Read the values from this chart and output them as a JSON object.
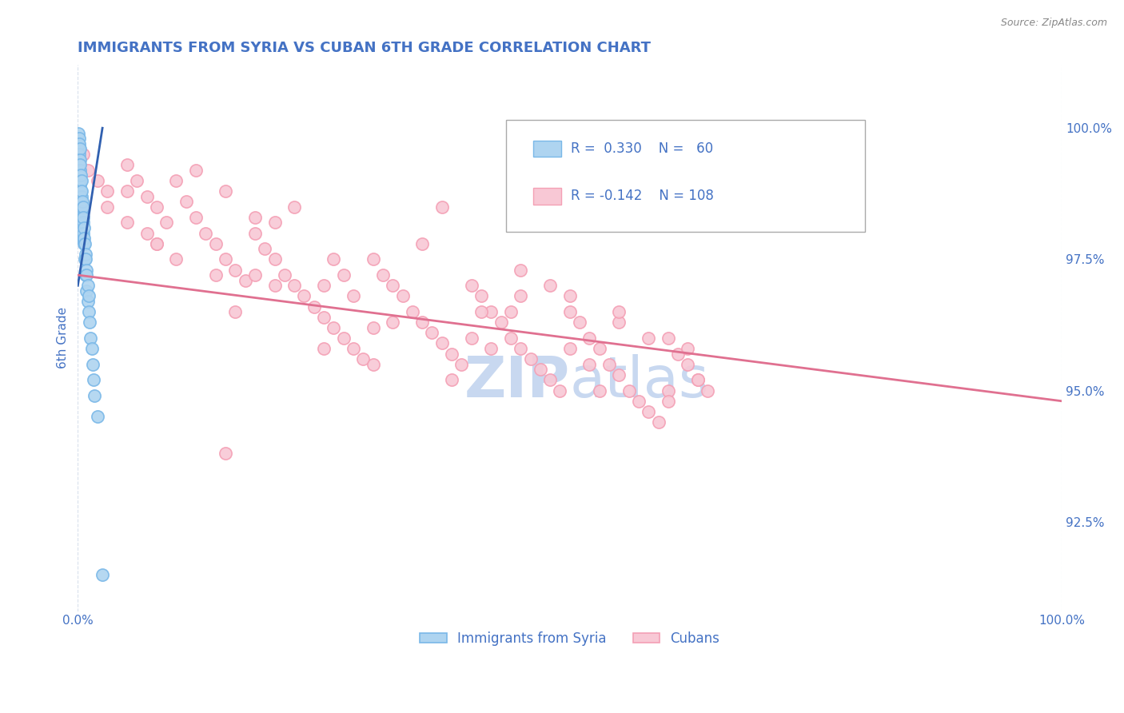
{
  "title": "IMMIGRANTS FROM SYRIA VS CUBAN 6TH GRADE CORRELATION CHART",
  "source_text": "Source: ZipAtlas.com",
  "ylabel": "6th Grade",
  "right_yticks": [
    92.5,
    95.0,
    97.5,
    100.0
  ],
  "right_yticklabels": [
    "92.5%",
    "95.0%",
    "97.5%",
    "100.0%"
  ],
  "xlim": [
    0.0,
    100.0
  ],
  "ylim": [
    90.8,
    101.2
  ],
  "color_blue": "#7ab8e8",
  "color_blue_fill": "#aed4f0",
  "color_pink": "#f4a0b5",
  "color_pink_fill": "#f8c8d5",
  "color_blue_line": "#3060b0",
  "color_pink_line": "#e07090",
  "color_blue_text": "#4472c4",
  "color_title": "#4472c4",
  "color_grid": "#d8e0ec",
  "color_axis_label": "#4472c4",
  "watermark_color": "#c8d8f0",
  "legend_label_syria": "Immigrants from Syria",
  "legend_label_cubans": "Cubans",
  "syria_scatter_x": [
    0.05,
    0.05,
    0.05,
    0.1,
    0.1,
    0.1,
    0.1,
    0.15,
    0.15,
    0.15,
    0.15,
    0.2,
    0.2,
    0.2,
    0.2,
    0.2,
    0.25,
    0.25,
    0.25,
    0.3,
    0.3,
    0.3,
    0.3,
    0.35,
    0.35,
    0.35,
    0.4,
    0.4,
    0.4,
    0.4,
    0.45,
    0.45,
    0.5,
    0.5,
    0.5,
    0.55,
    0.55,
    0.6,
    0.6,
    0.65,
    0.7,
    0.7,
    0.75,
    0.8,
    0.8,
    0.85,
    0.9,
    0.9,
    1.0,
    1.0,
    1.1,
    1.1,
    1.2,
    1.3,
    1.4,
    1.5,
    1.6,
    1.7,
    2.0,
    2.5
  ],
  "syria_scatter_y": [
    99.9,
    99.7,
    99.5,
    99.8,
    99.6,
    99.4,
    99.2,
    99.7,
    99.5,
    99.3,
    99.0,
    99.6,
    99.4,
    99.2,
    98.9,
    98.6,
    99.3,
    99.0,
    98.7,
    99.1,
    98.8,
    98.5,
    98.2,
    99.0,
    98.7,
    98.4,
    98.8,
    98.5,
    98.2,
    97.9,
    98.6,
    98.3,
    98.5,
    98.2,
    97.9,
    98.3,
    98.0,
    98.1,
    97.8,
    97.9,
    97.8,
    97.5,
    97.6,
    97.5,
    97.2,
    97.3,
    97.2,
    96.9,
    97.0,
    96.7,
    96.8,
    96.5,
    96.3,
    96.0,
    95.8,
    95.5,
    95.2,
    94.9,
    94.5,
    91.5
  ],
  "syria_trend_x": [
    0.0,
    2.5
  ],
  "syria_trend_y": [
    97.0,
    100.0
  ],
  "cubans_scatter_x": [
    0.5,
    1.0,
    2.0,
    3.0,
    5.0,
    6.0,
    7.0,
    8.0,
    9.0,
    10.0,
    11.0,
    12.0,
    13.0,
    14.0,
    15.0,
    16.0,
    17.0,
    18.0,
    19.0,
    20.0,
    21.0,
    22.0,
    23.0,
    24.0,
    25.0,
    26.0,
    27.0,
    28.0,
    29.0,
    30.0,
    31.0,
    32.0,
    33.0,
    34.0,
    35.0,
    36.0,
    37.0,
    38.0,
    39.0,
    40.0,
    41.0,
    42.0,
    43.0,
    44.0,
    45.0,
    46.0,
    47.0,
    48.0,
    49.0,
    50.0,
    51.0,
    52.0,
    53.0,
    54.0,
    55.0,
    56.0,
    57.0,
    58.0,
    59.0,
    60.0,
    61.0,
    62.0,
    63.0,
    64.0,
    5.0,
    8.0,
    15.0,
    20.0,
    25.0,
    30.0,
    35.0,
    40.0,
    12.0,
    18.0,
    22.0,
    28.0,
    3.0,
    7.0,
    45.0,
    50.0,
    55.0,
    60.0,
    10.0,
    16.0,
    48.0,
    38.0,
    44.0,
    52.0,
    58.0,
    63.0,
    20.0,
    26.0,
    32.0,
    8.0,
    14.0,
    42.0,
    55.0,
    60.0,
    5.0,
    62.0,
    30.0,
    18.0,
    45.0,
    25.0,
    37.0,
    50.0,
    15.0,
    53.0,
    41.0,
    27.0
  ],
  "cubans_scatter_y": [
    99.5,
    99.2,
    99.0,
    98.8,
    99.3,
    99.0,
    98.7,
    98.5,
    98.2,
    99.0,
    98.6,
    98.3,
    98.0,
    97.8,
    97.5,
    97.3,
    97.1,
    98.0,
    97.7,
    97.5,
    97.2,
    97.0,
    96.8,
    96.6,
    96.4,
    96.2,
    96.0,
    95.8,
    95.6,
    97.5,
    97.2,
    97.0,
    96.8,
    96.5,
    96.3,
    96.1,
    95.9,
    95.7,
    95.5,
    97.0,
    96.8,
    96.5,
    96.3,
    96.0,
    95.8,
    95.6,
    95.4,
    95.2,
    95.0,
    96.5,
    96.3,
    96.0,
    95.8,
    95.5,
    95.3,
    95.0,
    94.8,
    94.6,
    94.4,
    96.0,
    95.7,
    95.5,
    95.2,
    95.0,
    98.2,
    97.8,
    98.8,
    98.2,
    97.0,
    96.2,
    97.8,
    96.0,
    99.2,
    97.2,
    98.5,
    96.8,
    98.5,
    98.0,
    97.3,
    96.8,
    96.3,
    95.0,
    97.5,
    96.5,
    97.0,
    95.2,
    96.5,
    95.5,
    96.0,
    95.2,
    97.0,
    97.5,
    96.3,
    97.8,
    97.2,
    95.8,
    96.5,
    94.8,
    98.8,
    95.8,
    95.5,
    98.3,
    96.8,
    95.8,
    98.5,
    95.8,
    93.8,
    95.0,
    96.5,
    97.2
  ],
  "cubans_trend_x": [
    0.0,
    100.0
  ],
  "cubans_trend_y": [
    97.2,
    94.8
  ]
}
